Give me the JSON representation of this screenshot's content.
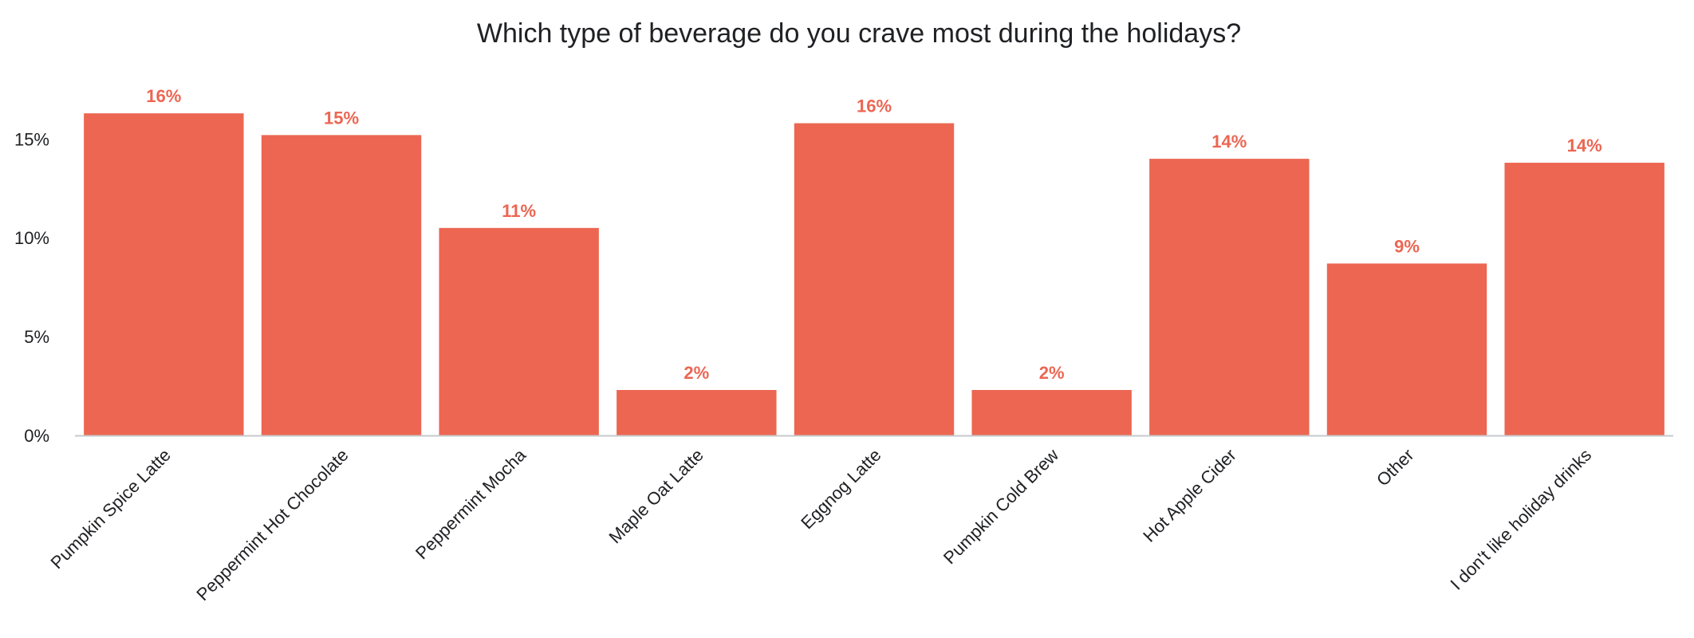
{
  "chart_data": {
    "type": "bar",
    "title": "Which type of beverage do you crave most during the holidays?",
    "categories": [
      "Pumpkin Spice Latte",
      "Peppermint Hot Chocolate",
      "Peppermint Mocha",
      "Maple Oat Latte",
      "Eggnog Latte",
      "Pumpkin Cold Brew",
      "Hot Apple Cider",
      "Other",
      "I don't like holiday drinks"
    ],
    "values": [
      16.3,
      15.2,
      10.5,
      2.3,
      15.8,
      2.3,
      14.0,
      8.7,
      13.8
    ],
    "data_labels": [
      "16%",
      "15%",
      "11%",
      "2%",
      "16%",
      "2%",
      "14%",
      "9%",
      "14%"
    ],
    "yticks": [
      0,
      5,
      10,
      15
    ],
    "ytick_labels": [
      "0%",
      "5%",
      "10%",
      "15%"
    ],
    "ylim": [
      0,
      18
    ],
    "xlabel": "",
    "ylabel": "",
    "grid": false,
    "legend": "none",
    "bar_color": "#ec6652",
    "label_color": "#ec6652",
    "axis_color": "#c7c9cc"
  }
}
